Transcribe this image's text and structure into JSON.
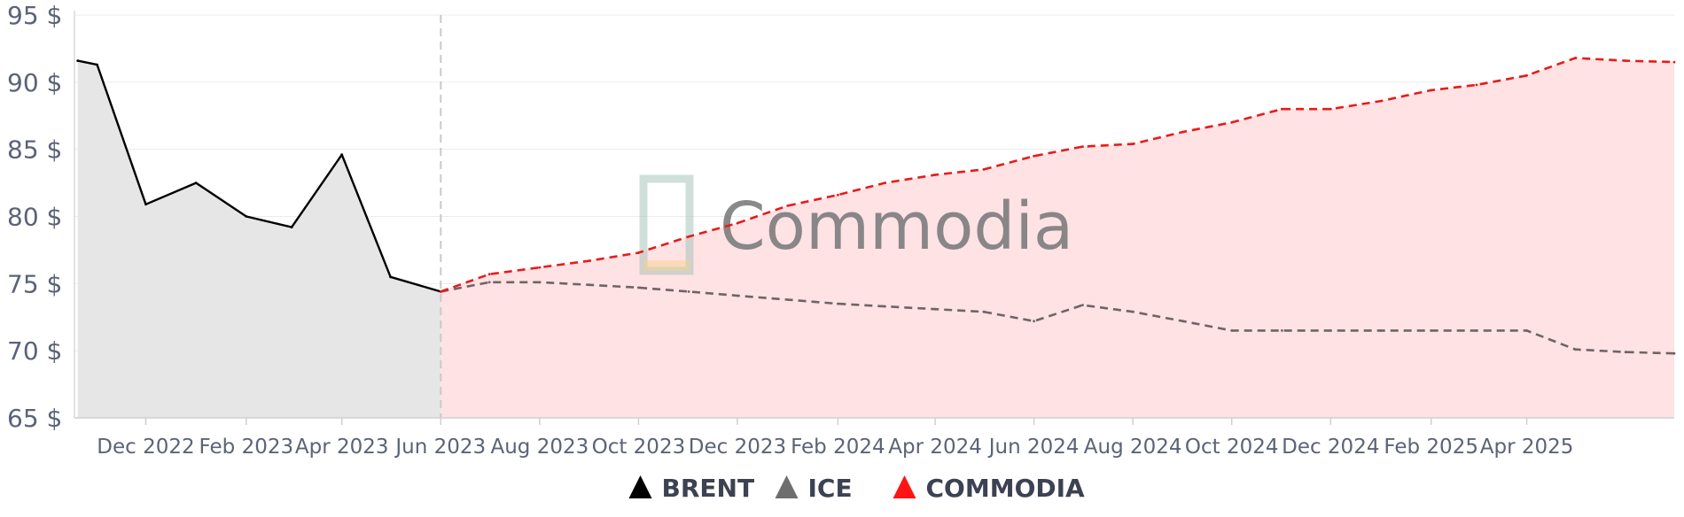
{
  "chart_data": {
    "type": "line",
    "y_unit_suffix": " $",
    "ylim": [
      65,
      95
    ],
    "yticks": [
      65,
      70,
      75,
      80,
      85,
      90,
      95
    ],
    "xlim": [
      "2022-10-18",
      "2025-07-01"
    ],
    "x_tick_labels": [
      {
        "date": "2022-12-01",
        "label": "Dec 2022"
      },
      {
        "date": "2023-02-01",
        "label": "Feb 2023"
      },
      {
        "date": "2023-04-01",
        "label": "Apr 2023"
      },
      {
        "date": "2023-06-01",
        "label": "Jun 2023"
      },
      {
        "date": "2023-08-01",
        "label": "Aug 2023"
      },
      {
        "date": "2023-10-01",
        "label": "Oct 2023"
      },
      {
        "date": "2023-12-01",
        "label": "Dec 2023"
      },
      {
        "date": "2024-02-01",
        "label": "Feb 2024"
      },
      {
        "date": "2024-04-01",
        "label": "Apr 2024"
      },
      {
        "date": "2024-06-01",
        "label": "Jun 2024"
      },
      {
        "date": "2024-08-01",
        "label": "Aug 2024"
      },
      {
        "date": "2024-10-01",
        "label": "Oct 2024"
      },
      {
        "date": "2024-12-01",
        "label": "Dec 2024"
      },
      {
        "date": "2025-02-01",
        "label": "Feb 2025"
      },
      {
        "date": "2025-04-01",
        "label": "Apr 2025"
      }
    ],
    "forecast_start": "2023-06-01",
    "grid": true,
    "legend_position": "bottom-center",
    "series": [
      {
        "name": "BRENT",
        "color": "#000000",
        "style": "solid",
        "fill": "#e6e6e6",
        "x": [
          "2022-10-20",
          "2022-11-01",
          "2022-12-01",
          "2023-01-01",
          "2023-02-01",
          "2023-03-01",
          "2023-04-01",
          "2023-05-01",
          "2023-06-01"
        ],
        "y": [
          91.6,
          91.3,
          80.9,
          82.5,
          80.0,
          79.2,
          84.6,
          75.5,
          74.4
        ]
      },
      {
        "name": "ICE",
        "color": "#6e6466",
        "style": "dashed",
        "fill": null,
        "x": [
          "2023-06-01",
          "2023-07-01",
          "2023-08-01",
          "2023-09-01",
          "2023-10-01",
          "2023-11-01",
          "2023-12-01",
          "2024-01-01",
          "2024-02-01",
          "2024-03-01",
          "2024-04-01",
          "2024-05-01",
          "2024-06-01",
          "2024-07-01",
          "2024-08-01",
          "2024-09-01",
          "2024-10-01",
          "2024-11-01",
          "2024-12-01",
          "2025-01-01",
          "2025-02-01",
          "2025-03-01",
          "2025-04-01",
          "2025-05-01",
          "2025-06-01",
          "2025-07-01"
        ],
        "y": [
          74.4,
          75.1,
          75.1,
          74.9,
          74.7,
          74.4,
          74.1,
          73.8,
          73.5,
          73.3,
          73.1,
          72.9,
          72.2,
          73.4,
          72.9,
          72.2,
          71.5,
          71.5,
          71.5,
          71.5,
          71.5,
          71.5,
          71.5,
          70.1,
          69.9,
          69.8
        ]
      },
      {
        "name": "COMMODIA",
        "color": "#e51c1c",
        "style": "dashed",
        "fill": "#ffe2e4",
        "x": [
          "2023-06-01",
          "2023-07-01",
          "2023-08-01",
          "2023-09-01",
          "2023-10-01",
          "2023-11-01",
          "2023-12-01",
          "2024-01-01",
          "2024-02-01",
          "2024-03-01",
          "2024-04-01",
          "2024-05-01",
          "2024-06-01",
          "2024-07-01",
          "2024-08-01",
          "2024-09-01",
          "2024-10-01",
          "2024-11-01",
          "2024-12-01",
          "2025-01-01",
          "2025-02-01",
          "2025-03-01",
          "2025-04-01",
          "2025-05-01",
          "2025-06-01",
          "2025-07-01"
        ],
        "y": [
          74.4,
          75.7,
          76.2,
          76.7,
          77.3,
          78.5,
          79.5,
          80.8,
          81.6,
          82.5,
          83.1,
          83.5,
          84.5,
          85.2,
          85.4,
          86.3,
          87.0,
          88.0,
          88.0,
          88.6,
          89.4,
          89.8,
          90.5,
          91.8,
          91.6,
          91.5
        ]
      }
    ]
  },
  "watermark": {
    "text": "Commodia"
  }
}
